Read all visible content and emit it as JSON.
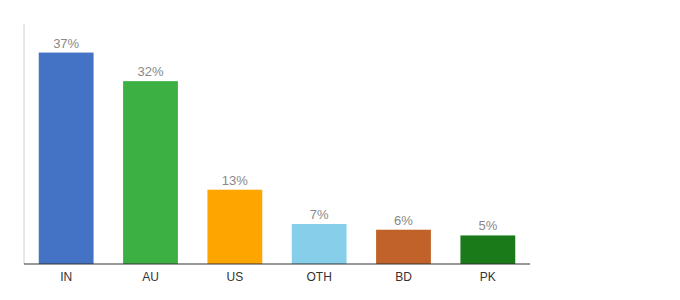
{
  "chart_data": {
    "type": "bar",
    "categories": [
      "IN",
      "AU",
      "US",
      "OTH",
      "BD",
      "PK"
    ],
    "values": [
      37,
      32,
      13,
      7,
      6,
      5
    ],
    "value_labels": [
      "37%",
      "32%",
      "13%",
      "7%",
      "6%",
      "5%"
    ],
    "colors": [
      "#4472C4",
      "#3CB043",
      "#FFA500",
      "#87CEEB",
      "#C0622A",
      "#1A7A1A"
    ],
    "ylim": [
      0,
      42
    ],
    "data_labels": true,
    "tick_labels": "x",
    "grid": false
  }
}
